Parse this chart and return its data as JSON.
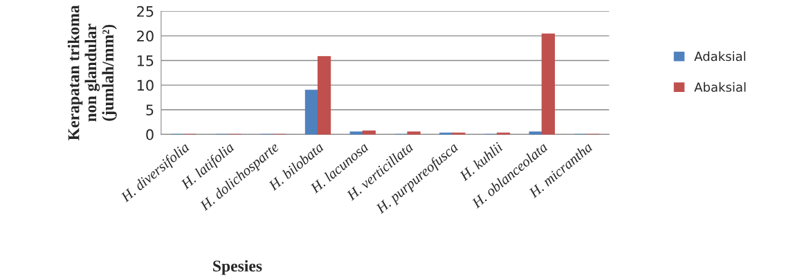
{
  "chart_data": {
    "type": "bar",
    "xlabel": "Spesies",
    "ylabel": "Kerapatan trikoma\nnon glandular\n(jumlah/mm²)",
    "categories": [
      "H. diversifolia",
      "H. latifolia",
      "H. dolichosparte",
      "H. bilobata",
      "H. lacunosa",
      "H. verticillata",
      "H. purpureofusca",
      "H. kuhlii",
      "H. oblanceolata",
      "H. micrantha"
    ],
    "series": [
      {
        "name": "Adaksial",
        "color": "#4f81bd",
        "values": [
          0,
          0,
          0,
          9,
          0.5,
          0,
          0.3,
          0,
          0.5,
          0
        ]
      },
      {
        "name": "Abaksial",
        "color": "#c0504d",
        "values": [
          0,
          0,
          0,
          15.8,
          0.7,
          0.5,
          0.3,
          0.3,
          20.4,
          0
        ]
      }
    ],
    "ylim": [
      0,
      25
    ],
    "yticks": [
      0,
      5,
      10,
      15,
      20,
      25
    ],
    "grid": "y",
    "legend": "right"
  }
}
